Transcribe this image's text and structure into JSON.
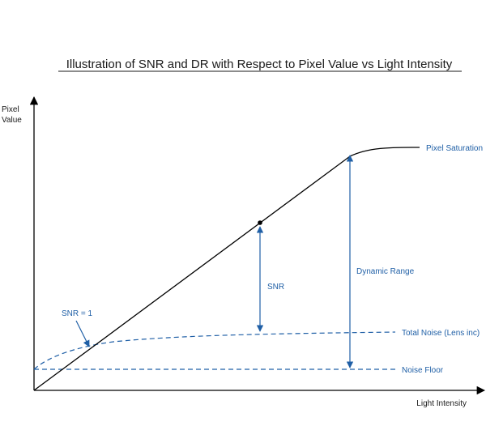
{
  "title": "Illustration of SNR and DR with Respect to Pixel Value vs Light Intensity",
  "axes": {
    "y_label_line1": "Pixel",
    "y_label_line2": "Value",
    "x_label": "Light Intensity"
  },
  "labels": {
    "pixel_saturation": "Pixel Saturation",
    "dynamic_range": "Dynamic Range",
    "snr": "SNR",
    "snr_equals_one": "SNR = 1",
    "total_noise": "Total Noise (Lens inc)",
    "noise_floor": "Noise Floor"
  },
  "colors": {
    "annotation": "#1f5fa6",
    "curve": "#000000"
  }
}
